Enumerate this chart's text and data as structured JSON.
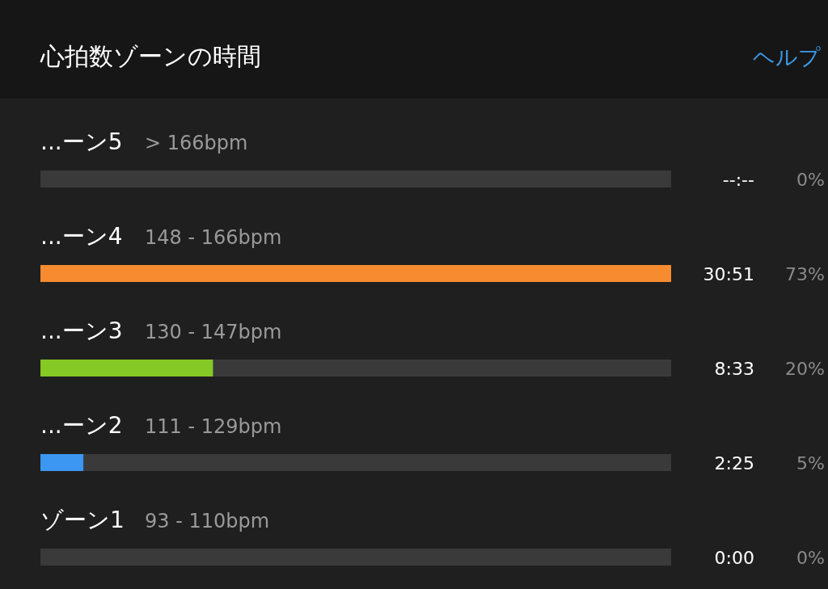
{
  "chart_data": {
    "type": "bar",
    "orientation": "horizontal",
    "stacked": true,
    "title": "心拍数ゾーンの時間",
    "categories": [
      "...ーン5",
      "...ーン4",
      "...ーン3",
      "...ーン2",
      "ゾーン1"
    ],
    "series": [
      {
        "colors": [
          null,
          "#f68b2f",
          "#85c926",
          "#3c97f2",
          null
        ],
        "values": [
          0,
          73,
          20,
          5,
          0
        ],
        "value_labels": [
          "0%",
          "73%",
          "20%",
          "5%",
          "0%"
        ]
      },
      {
        "color": "#3a3a3a",
        "values": [
          73,
          0,
          53,
          68,
          73
        ]
      }
    ],
    "annotations": [
      "ヘルプ",
      "> 166bpm",
      "148 - 166bpm",
      "130 - 147bpm",
      "111 - 129bpm",
      "93 - 110bpm",
      "--:--",
      "30:51",
      "8:33",
      "2:25",
      "0:00"
    ]
  }
}
